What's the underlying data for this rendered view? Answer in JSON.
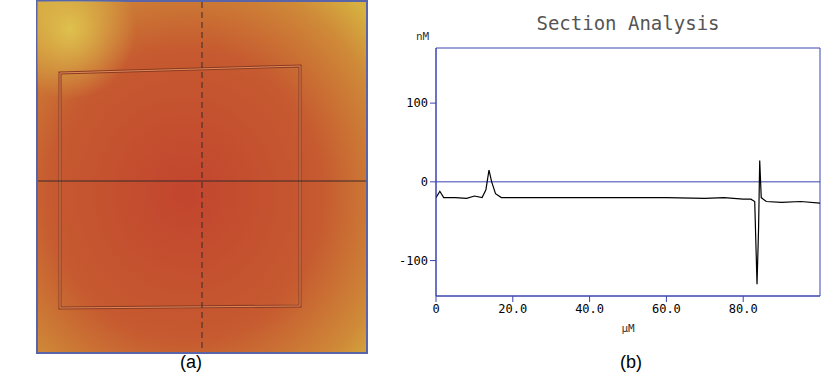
{
  "chart_data": {
    "type": "line",
    "title": "Section Analysis",
    "x_label": "μM",
    "y_label": "nM",
    "x": [
      0,
      1,
      2,
      5,
      8,
      10,
      12,
      13,
      13.8,
      14.5,
      15.5,
      17,
      20,
      30,
      40,
      50,
      60,
      70,
      75,
      80,
      82,
      83,
      83.6,
      84,
      84.3,
      84.7,
      86,
      90,
      95,
      100
    ],
    "values": [
      -20,
      -12,
      -20,
      -20,
      -21,
      -18,
      -20,
      -10,
      15,
      0,
      -15,
      -20,
      -20,
      -20,
      -20,
      -20,
      -20,
      -21,
      -20,
      -22,
      -22,
      -25,
      -130,
      -60,
      27,
      -20,
      -25,
      -26,
      -25,
      -27
    ],
    "color": "#000000",
    "xlim": [
      0,
      100
    ],
    "ylim": [
      -145,
      170
    ],
    "xticks": [
      0,
      {
        "value": 20,
        "label": "20.0"
      },
      {
        "value": 40,
        "label": "40.0"
      },
      {
        "value": 60,
        "label": "60.0"
      },
      {
        "value": 80,
        "label": "80.0"
      }
    ],
    "yticks": [
      -100,
      0,
      100
    ],
    "hline": 0,
    "grid": false
  },
  "panel_labels": [
    "(a)",
    "(b)"
  ]
}
